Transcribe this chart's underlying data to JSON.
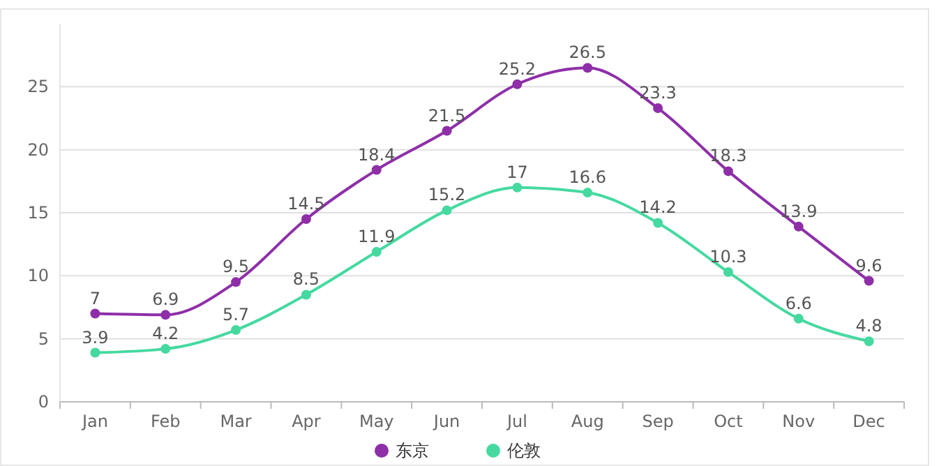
{
  "chart_data": {
    "type": "line",
    "categories": [
      "Jan",
      "Feb",
      "Mar",
      "Apr",
      "May",
      "Jun",
      "Jul",
      "Aug",
      "Sep",
      "Oct",
      "Nov",
      "Dec"
    ],
    "series": [
      {
        "name": "东京",
        "color": "#8e2fa8",
        "values": [
          7,
          6.9,
          9.5,
          14.5,
          18.4,
          21.5,
          25.2,
          26.5,
          23.3,
          18.3,
          13.9,
          9.6
        ]
      },
      {
        "name": "伦敦",
        "color": "#45d9a0",
        "values": [
          3.9,
          4.2,
          5.7,
          8.5,
          11.9,
          15.2,
          17,
          16.6,
          14.2,
          10.3,
          6.6,
          4.8
        ]
      }
    ],
    "ylim": [
      0,
      30
    ],
    "yticks": [
      0,
      5,
      10,
      15,
      20,
      25
    ],
    "grid": "y",
    "legend": "bottom",
    "marker": "circle",
    "line_style": "solid",
    "data_labels": true
  }
}
